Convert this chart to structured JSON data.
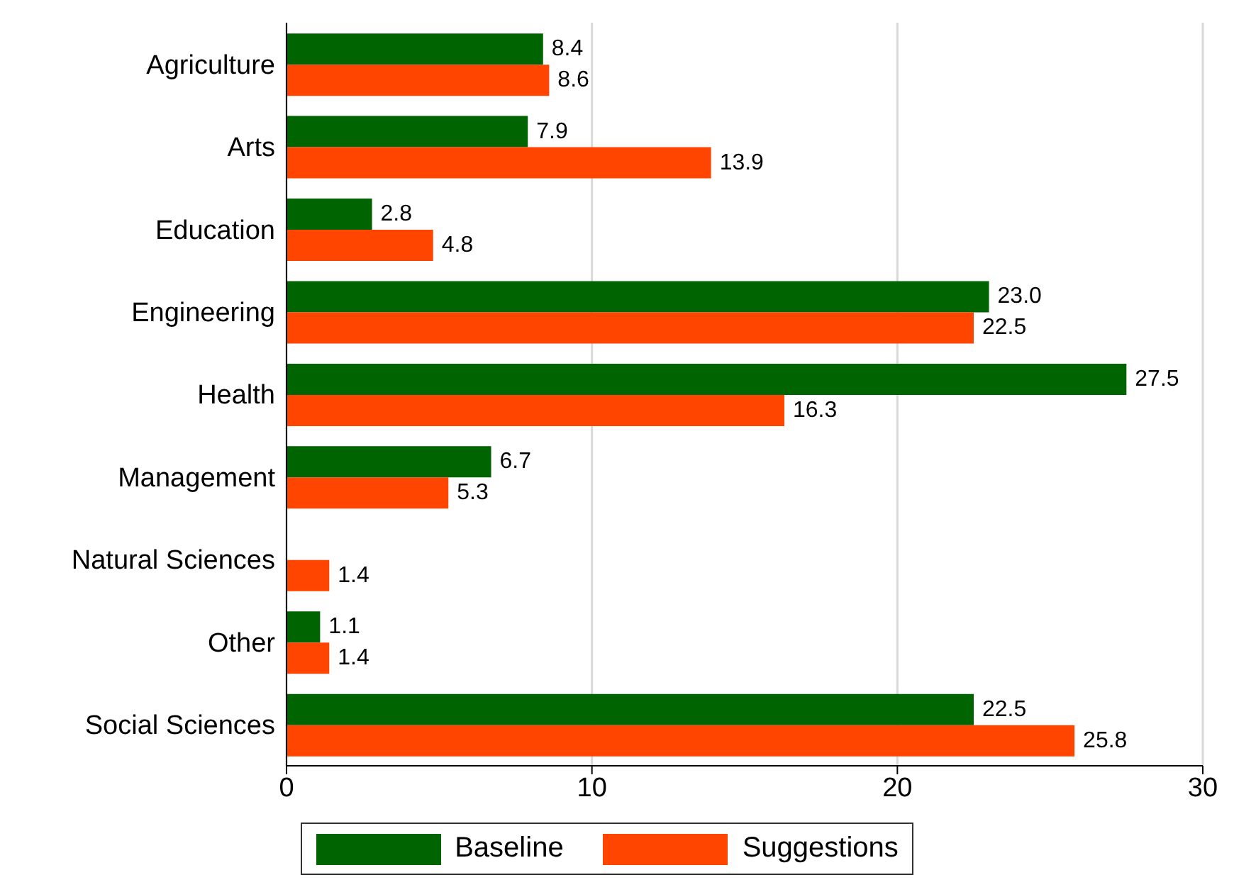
{
  "chart_data": {
    "type": "bar",
    "orientation": "horizontal",
    "categories": [
      "Agriculture",
      "Arts",
      "Education",
      "Engineering",
      "Health",
      "Management",
      "Natural Sciences",
      "Other",
      "Social Sciences"
    ],
    "series": [
      {
        "name": "Baseline",
        "color": "#006400",
        "values": [
          8.4,
          7.9,
          2.8,
          23.0,
          27.5,
          6.7,
          null,
          1.1,
          22.5
        ],
        "value_labels": [
          "8.4",
          "7.9",
          "2.8",
          "23.0",
          "27.5",
          "6.7",
          null,
          "1.1",
          "22.5"
        ]
      },
      {
        "name": "Suggestions",
        "color": "#ff4500",
        "values": [
          8.6,
          13.9,
          4.8,
          22.5,
          16.3,
          5.3,
          1.4,
          1.4,
          25.8
        ],
        "value_labels": [
          "8.6",
          "13.9",
          "4.8",
          "22.5",
          "16.3",
          "5.3",
          "1.4",
          "1.4",
          "25.8"
        ]
      }
    ],
    "xlim": [
      0,
      30
    ],
    "xticks": [
      0,
      10,
      20,
      30
    ],
    "grid": "x",
    "legend": "bottom"
  }
}
